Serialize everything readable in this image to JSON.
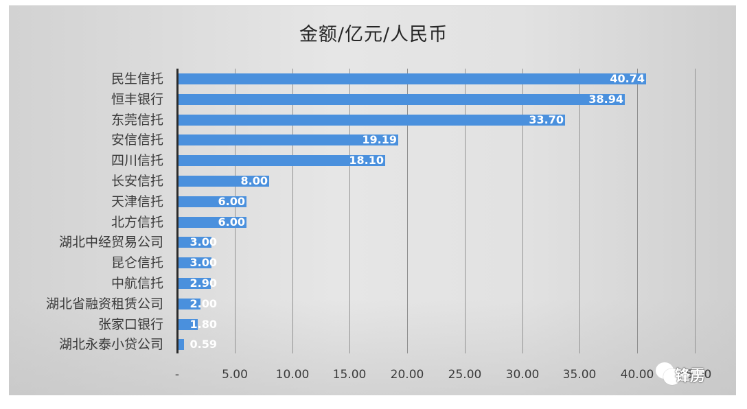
{
  "chart_data": {
    "type": "bar",
    "orientation": "horizontal",
    "title": "金额/亿元/人民币",
    "xlabel": "",
    "ylabel": "",
    "categories": [
      "民生信托",
      "恒丰银行",
      "东莞信托",
      "安信信托",
      "四川信托",
      "长安信托",
      "天津信托",
      "北方信托",
      "湖北中经贸易公司",
      "昆仑信托",
      "中航信托",
      "湖北省融资租赁公司",
      "张家口银行",
      "湖北永泰小贷公司"
    ],
    "values": [
      40.74,
      38.94,
      33.7,
      19.19,
      18.1,
      8.0,
      6.0,
      6.0,
      3.0,
      3.0,
      2.9,
      2.0,
      1.8,
      0.59
    ],
    "value_labels": [
      "40.74",
      "38.94",
      "33.70",
      "19.19",
      "18.10",
      "8.00",
      "6.00",
      "6.00",
      "3.00",
      "3.00",
      "2.90",
      "2.00",
      "1.80",
      "0.59"
    ],
    "xlim": [
      0,
      45
    ],
    "x_ticks": [
      0,
      5,
      10,
      15,
      20,
      25,
      30,
      35,
      40,
      45
    ],
    "x_tick_labels": [
      "-",
      "5.00",
      "10.00",
      "15.00",
      "20.00",
      "25.00",
      "30.00",
      "35.00",
      "40.00",
      "45.00"
    ],
    "grid": "vertical",
    "legend": null,
    "bar_color": "#4a90dd",
    "label_color": "#ffffff"
  },
  "watermark": {
    "text": "锋雳",
    "icon": "wechat-icon"
  }
}
